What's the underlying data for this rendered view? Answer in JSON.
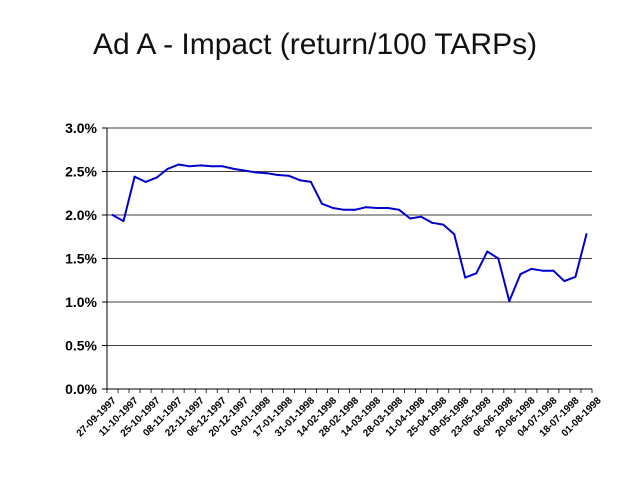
{
  "slide": {
    "title": "Ad A - Impact (return/100 TARPs)"
  },
  "chart_data": {
    "type": "line",
    "title": "Ad A - Impact (return/100 TARPs)",
    "xlabel": "",
    "ylabel": "",
    "ylim": [
      0,
      0.03
    ],
    "y_ticks": [
      "0.0%",
      "0.5%",
      "1.0%",
      "1.5%",
      "2.0%",
      "2.5%",
      "3.0%"
    ],
    "x_tick_labels": [
      "27-09-1997",
      "11-10-1997",
      "25-10-1997",
      "08-11-1997",
      "22-11-1997",
      "06-12-1997",
      "20-12-1997",
      "03-01-1998",
      "17-01-1998",
      "31-01-1998",
      "14-02-1998",
      "28-02-1998",
      "14-03-1998",
      "28-03-1998",
      "11-04-1998",
      "25-04-1998",
      "09-05-1998",
      "23-05-1998",
      "06-06-1998",
      "20-06-1998",
      "04-07-1998",
      "18-07-1998",
      "01-08-1998"
    ],
    "grid": true,
    "line_color": "#0000cc",
    "series": [
      {
        "name": "Ad A impact",
        "values": [
          0.02,
          0.0193,
          0.0244,
          0.0238,
          0.0243,
          0.0253,
          0.0258,
          0.0256,
          0.0257,
          0.0256,
          0.0256,
          0.0253,
          0.0251,
          0.0249,
          0.0248,
          0.0246,
          0.0245,
          0.024,
          0.0238,
          0.0213,
          0.0208,
          0.0206,
          0.0206,
          0.0209,
          0.0208,
          0.0208,
          0.0206,
          0.0196,
          0.0198,
          0.0191,
          0.0189,
          0.0178,
          0.0128,
          0.0133,
          0.0158,
          0.015,
          0.0101,
          0.0132,
          0.0138,
          0.0136,
          0.0136,
          0.0124,
          0.0129,
          0.0178
        ]
      }
    ]
  }
}
